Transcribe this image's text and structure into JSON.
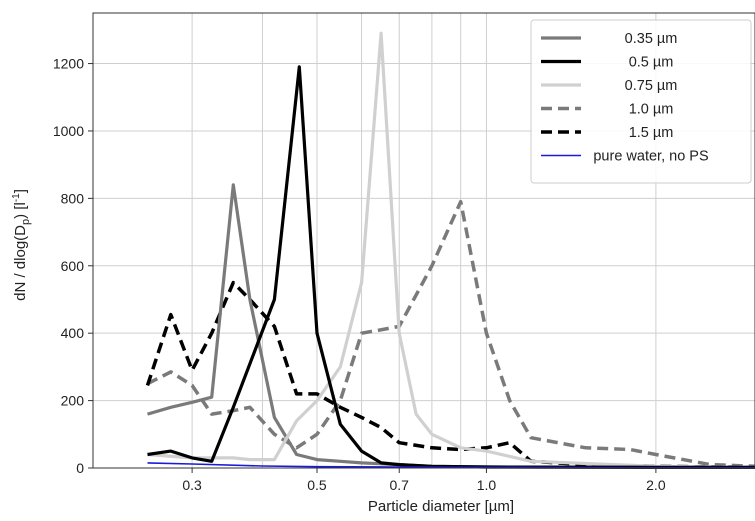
{
  "chart_data": {
    "type": "line",
    "xlabel": "Particle diameter [µm]",
    "ylabel_parts": {
      "main": "dN / dlog(D",
      "sub": "p",
      "mid": ") [l",
      "sup": "-1",
      "end": "]"
    },
    "x_scale": "log",
    "xlim": [
      0.2,
      3.0
    ],
    "ylim": [
      0,
      1350
    ],
    "x_ticks": [
      0.3,
      0.5,
      0.7,
      1.0,
      2.0
    ],
    "x_tick_labels": [
      "0.3",
      "0.5",
      "0.7",
      "1.0",
      "2.0"
    ],
    "x_minor_grid": [
      0.4,
      0.6,
      0.8,
      0.9,
      3.0
    ],
    "y_ticks": [
      0,
      200,
      400,
      600,
      800,
      1000,
      1200
    ],
    "y_tick_labels": [
      "0",
      "200",
      "400",
      "600",
      "800",
      "1000",
      "1200"
    ],
    "grid": true,
    "legend_position": "top-right",
    "series": [
      {
        "name": "0.35 µm",
        "color": "#7a7a7a",
        "dash": "solid",
        "x": [
          0.25,
          0.275,
          0.3,
          0.325,
          0.355,
          0.38,
          0.42,
          0.46,
          0.5,
          0.55,
          0.6,
          0.7,
          0.8,
          1.0,
          2.0,
          3.0
        ],
        "y": [
          160,
          180,
          195,
          210,
          840,
          500,
          150,
          40,
          25,
          20,
          15,
          10,
          5,
          3,
          2,
          2
        ]
      },
      {
        "name": "0.5 µm",
        "color": "#000000",
        "dash": "solid",
        "x": [
          0.25,
          0.275,
          0.3,
          0.325,
          0.355,
          0.42,
          0.465,
          0.5,
          0.55,
          0.6,
          0.65,
          0.7,
          0.8,
          1.0,
          2.0,
          3.0
        ],
        "y": [
          40,
          50,
          30,
          20,
          180,
          500,
          1190,
          400,
          130,
          50,
          15,
          10,
          5,
          3,
          2,
          2
        ]
      },
      {
        "name": "0.75 µm",
        "color": "#d0d0d0",
        "dash": "solid",
        "x": [
          0.25,
          0.3,
          0.355,
          0.38,
          0.42,
          0.46,
          0.5,
          0.55,
          0.6,
          0.65,
          0.7,
          0.75,
          0.8,
          0.9,
          1.0,
          1.2,
          2.0,
          3.0
        ],
        "y": [
          40,
          30,
          30,
          25,
          25,
          140,
          200,
          300,
          550,
          1290,
          400,
          160,
          100,
          60,
          50,
          20,
          5,
          2
        ]
      },
      {
        "name": "1.0 µm",
        "color": "#7a7a7a",
        "dash": "dashed",
        "x": [
          0.25,
          0.275,
          0.3,
          0.325,
          0.355,
          0.38,
          0.42,
          0.46,
          0.5,
          0.55,
          0.6,
          0.65,
          0.7,
          0.8,
          0.9,
          1.0,
          1.1,
          1.2,
          1.5,
          1.8,
          2.0,
          2.5,
          3.0
        ],
        "y": [
          250,
          285,
          245,
          160,
          170,
          180,
          100,
          60,
          100,
          200,
          400,
          410,
          420,
          600,
          790,
          400,
          200,
          90,
          60,
          55,
          40,
          10,
          5
        ]
      },
      {
        "name": "1.5 µm",
        "color": "#000000",
        "dash": "dashed",
        "x": [
          0.25,
          0.275,
          0.3,
          0.325,
          0.355,
          0.38,
          0.42,
          0.46,
          0.5,
          0.55,
          0.6,
          0.65,
          0.7,
          0.8,
          0.9,
          1.0,
          1.1,
          1.2,
          1.5,
          2.0,
          3.0
        ],
        "y": [
          245,
          455,
          290,
          400,
          550,
          500,
          420,
          220,
          220,
          180,
          150,
          120,
          75,
          60,
          55,
          60,
          75,
          20,
          10,
          5,
          2
        ]
      },
      {
        "name": "pure water, no PS",
        "color": "#1a1adb",
        "dash": "thin",
        "x": [
          0.25,
          0.3,
          0.4,
          0.5,
          0.7,
          1.0,
          2.0,
          3.0
        ],
        "y": [
          15,
          12,
          6,
          4,
          3,
          2,
          1,
          1
        ]
      }
    ]
  }
}
